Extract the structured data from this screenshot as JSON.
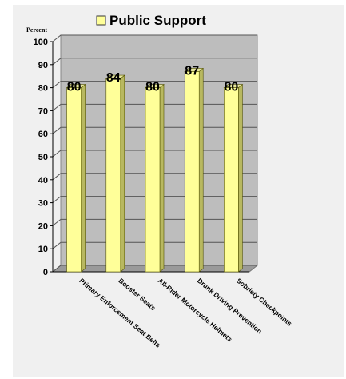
{
  "chart_data": {
    "type": "bar",
    "title": "",
    "legend": {
      "position": "top",
      "entries": [
        "Public Support"
      ]
    },
    "ylabel": "Percent",
    "xlabel": "",
    "ylim": [
      0,
      100
    ],
    "yticks": [
      0,
      10,
      20,
      30,
      40,
      50,
      60,
      70,
      80,
      90,
      100
    ],
    "grid": true,
    "categories": [
      "Primary Enforcement Seat Belts",
      "Booster Seats",
      "All-Rider Motorcycle Helmets",
      "Drunk Driving Prevention",
      "Sobriety Checkpoints"
    ],
    "series": [
      {
        "name": "Public Support",
        "values": [
          80,
          84,
          80,
          87,
          80
        ]
      }
    ],
    "data_labels": [
      "80",
      "84",
      "80",
      "87",
      "80"
    ],
    "colors": {
      "bar_front": "#ffff99",
      "bar_side": "#b8b860",
      "bar_top": "#e6e6a0",
      "bar_edge": "#555500",
      "plot_back": "#bdbdbd",
      "plot_floor": "#9a9a9a",
      "frame": "#f0f0f0"
    }
  }
}
